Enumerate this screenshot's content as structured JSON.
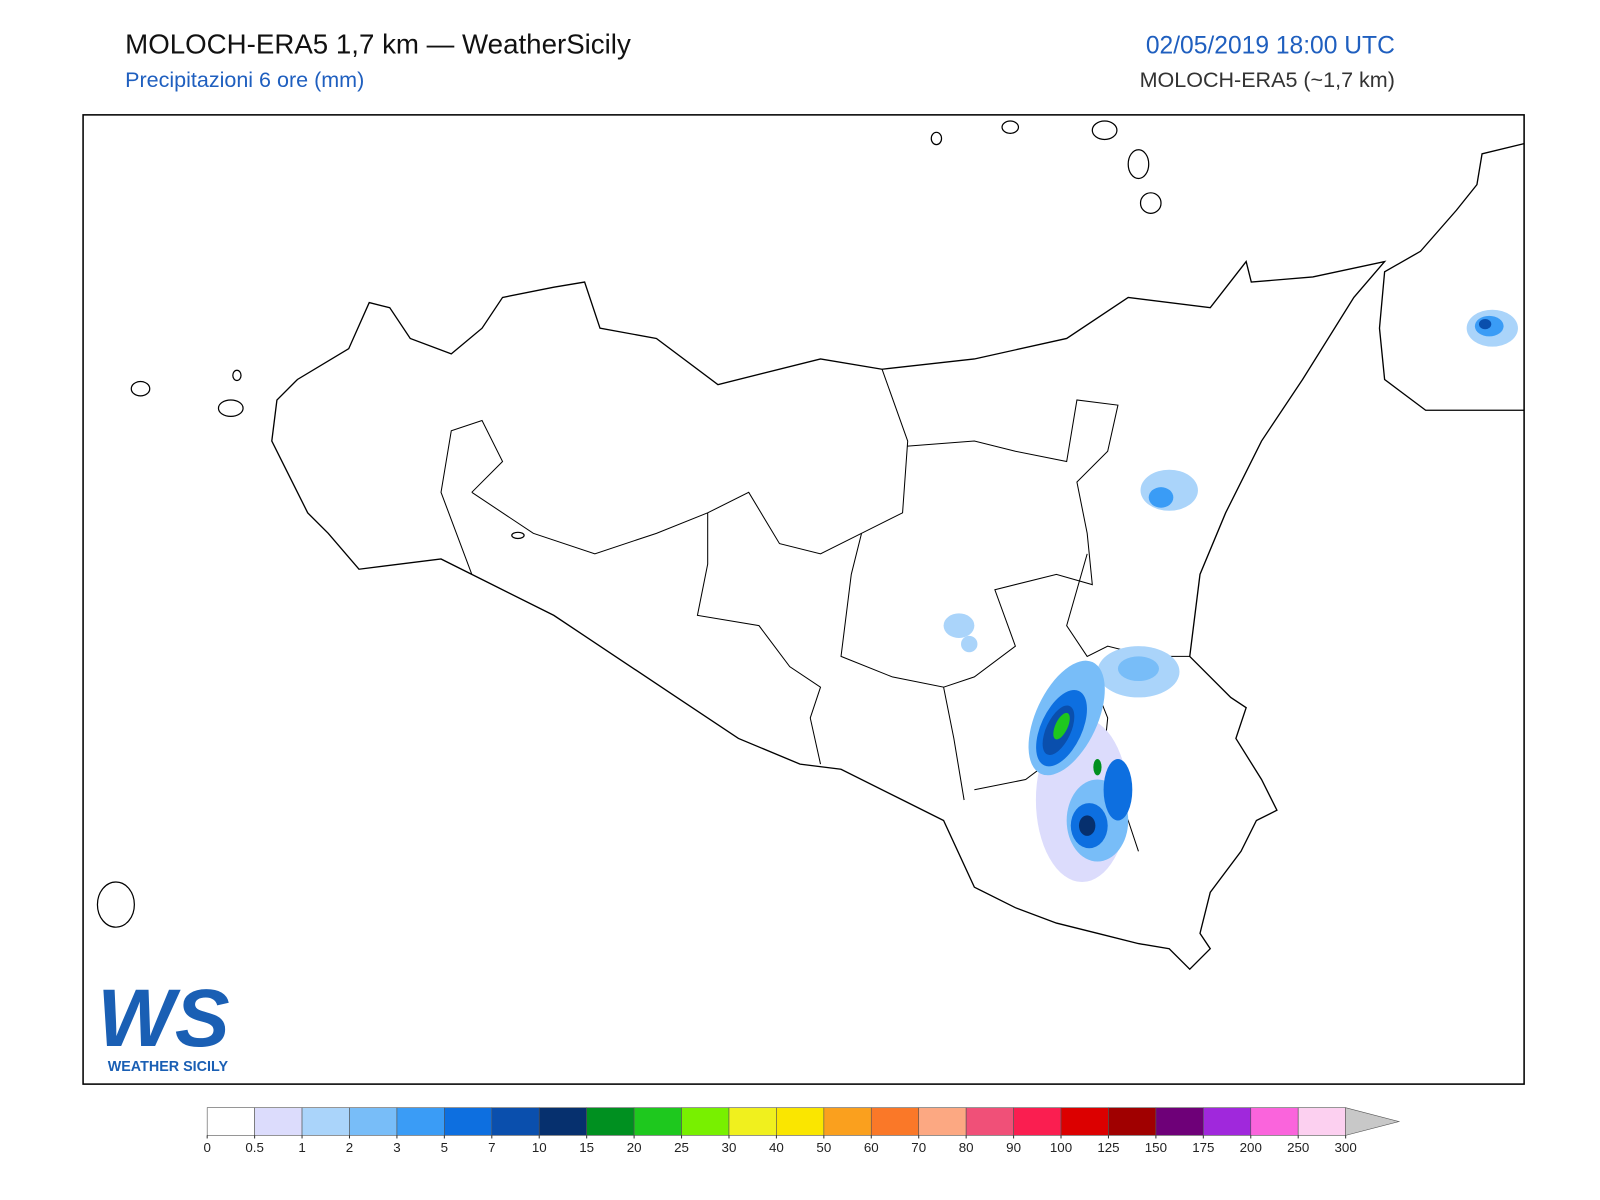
{
  "header": {
    "title": "MOLOCH-ERA5 1,7 km — WeatherSicily",
    "subtitle": "Precipitazioni 6 ore (mm)",
    "datetime": "02/05/2019 18:00 UTC",
    "model": "MOLOCH-ERA5 (~1,7 km)"
  },
  "logo": {
    "mark": "WS",
    "text": "WEATHER SICILY"
  },
  "colorbar": {
    "ticks": [
      0,
      0.5,
      1,
      2,
      3,
      5,
      7,
      10,
      15,
      20,
      25,
      30,
      40,
      50,
      60,
      70,
      80,
      90,
      100,
      125,
      150,
      175,
      200,
      250,
      300
    ],
    "colors": [
      "#ffffff",
      "#dcdcfc",
      "#aad4fa",
      "#78bdf8",
      "#3a9cf6",
      "#0d6fe0",
      "#0a4fad",
      "#06306e",
      "#009020",
      "#1ec81e",
      "#78f000",
      "#f0f01e",
      "#fae600",
      "#faa01e",
      "#fa7828",
      "#fca882",
      "#f05078",
      "#fa1e50",
      "#dc0000",
      "#a00000",
      "#6e0078",
      "#a028dc",
      "#fa64dc",
      "#fcd0f0"
    ],
    "extend_color": "#c8c8c8"
  }
}
